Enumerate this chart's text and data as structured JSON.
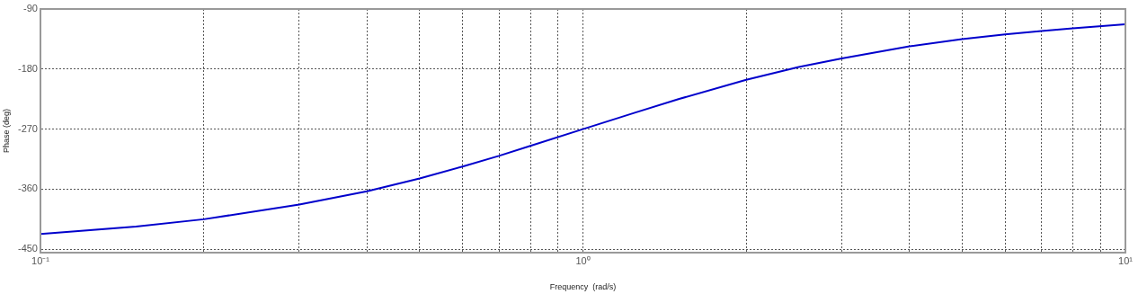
{
  "chart_data": {
    "type": "line",
    "xlabel": "Frequency  (rad/s)",
    "ylabel": "Phase (deg)",
    "log": "x",
    "grid": true,
    "marker": "none",
    "line_style": "solid",
    "xlim": [
      0.1,
      10
    ],
    "ylim": [
      -455,
      -90
    ],
    "xticks": [
      {
        "value": 0.1,
        "label": "10⁻¹"
      },
      {
        "value": 0.2,
        "label": null
      },
      {
        "value": 0.3,
        "label": null
      },
      {
        "value": 0.4,
        "label": null
      },
      {
        "value": 0.5,
        "label": null
      },
      {
        "value": 0.6,
        "label": null
      },
      {
        "value": 0.7,
        "label": null
      },
      {
        "value": 0.8,
        "label": null
      },
      {
        "value": 0.9,
        "label": null
      },
      {
        "value": 1,
        "label": "10⁰"
      },
      {
        "value": 2,
        "label": null
      },
      {
        "value": 3,
        "label": null
      },
      {
        "value": 4,
        "label": null
      },
      {
        "value": 5,
        "label": null
      },
      {
        "value": 6,
        "label": null
      },
      {
        "value": 7,
        "label": null
      },
      {
        "value": 8,
        "label": null
      },
      {
        "value": 9,
        "label": null
      },
      {
        "value": 10,
        "label": "10¹"
      }
    ],
    "yticks": [
      -450,
      -360,
      -270,
      -180,
      -90
    ],
    "x": [
      0.1,
      0.15,
      0.2,
      0.3,
      0.4,
      0.5,
      0.6,
      0.7,
      0.8,
      1,
      1.25,
      1.5,
      2,
      2.5,
      3,
      4,
      5,
      6,
      7,
      8,
      10
    ],
    "series": [
      {
        "color": "#0000cc",
        "values": [
          -427,
          -416,
          -405,
          -383,
          -363,
          -344,
          -326,
          -310,
          -295,
          -270,
          -245,
          -225,
          -196,
          -177,
          -164,
          -146,
          -135,
          -128,
          -123,
          -119,
          -113
        ]
      }
    ]
  }
}
